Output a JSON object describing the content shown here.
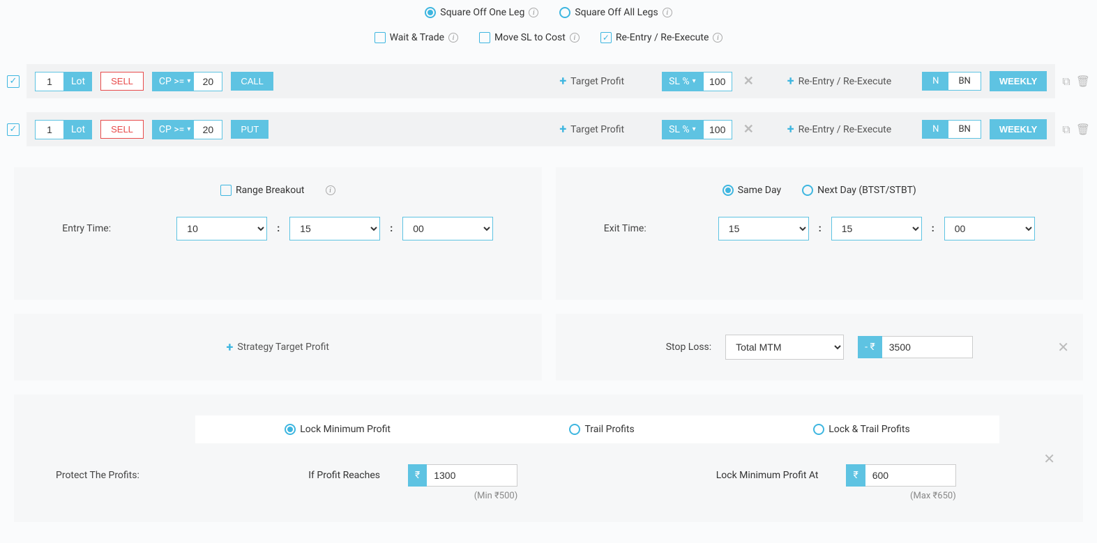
{
  "squareOff": {
    "oneLeg": "Square Off One Leg",
    "allLegs": "Square Off All Legs"
  },
  "opts": {
    "waitTrade": "Wait & Trade",
    "moveSL": "Move SL to Cost",
    "reEntry": "Re-Entry / Re-Execute"
  },
  "legs": [
    {
      "qty": "1",
      "lot": "Lot",
      "side": "SELL",
      "cp": "CP >=",
      "cpVal": "20",
      "type": "CALL",
      "target": "Target Profit",
      "slLabel": "SL %",
      "slVal": "100",
      "reentry": "Re-Entry / Re-Execute",
      "n": "N",
      "bn": "BN",
      "weekly": "WEEKLY"
    },
    {
      "qty": "1",
      "lot": "Lot",
      "side": "SELL",
      "cp": "CP >=",
      "cpVal": "20",
      "type": "PUT",
      "target": "Target Profit",
      "slLabel": "SL %",
      "slVal": "100",
      "reentry": "Re-Entry / Re-Execute",
      "n": "N",
      "bn": "BN",
      "weekly": "WEEKLY"
    }
  ],
  "entry": {
    "rangeBreakout": "Range Breakout",
    "label": "Entry Time:",
    "h": "10",
    "m": "15",
    "s": "00"
  },
  "exit": {
    "sameDay": "Same Day",
    "nextDay": "Next Day (BTST/STBT)",
    "label": "Exit Time:",
    "h": "15",
    "m": "15",
    "s": "00"
  },
  "strategy": {
    "targetProfit": "Strategy Target Profit",
    "stopLoss": "Stop Loss:",
    "slType": "Total MTM",
    "slPrefix": "- ₹",
    "slVal": "3500"
  },
  "protect": {
    "label": "Protect The Profits:",
    "tabs": {
      "lock": "Lock Minimum Profit",
      "trail": "Trail Profits",
      "lockTrail": "Lock & Trail Profits"
    },
    "ifReach": "If Profit Reaches",
    "ifReachVal": "1300",
    "ifReachHint": "(Min ₹500)",
    "lockAt": "Lock Minimum Profit At",
    "lockAtVal": "600",
    "lockAtHint": "(Max ₹650)",
    "rupee": "₹"
  },
  "colors": {
    "accent": "#5ec3e2",
    "danger": "#e84a4a",
    "panelBg": "#f6f7f8"
  }
}
